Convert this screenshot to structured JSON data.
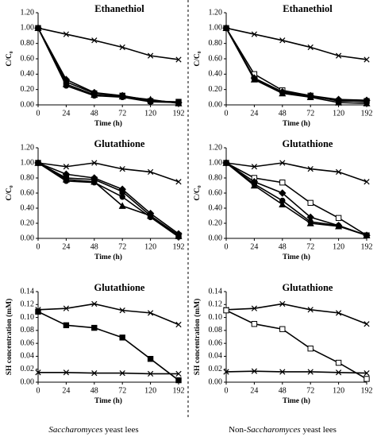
{
  "chart_data": [
    {
      "type": "line",
      "title": "Ethanethiol",
      "xlabel": "Time (h)",
      "ylabel": "C/C₀",
      "categories": [
        "0",
        "24",
        "48",
        "72",
        "120",
        "192"
      ],
      "ylim": [
        0,
        1.2
      ],
      "yticks": [
        {
          "value": 0,
          "label": "0.00"
        },
        {
          "value": 0.2,
          "label": "0.20"
        },
        {
          "value": 0.4,
          "label": "0.40"
        },
        {
          "value": 0.6,
          "label": "0.60"
        },
        {
          "value": 0.8,
          "label": "0.80"
        },
        {
          "value": 1,
          "label": "1.00"
        },
        {
          "value": 1.2,
          "label": "1.20"
        }
      ],
      "grid": false,
      "series": [
        {
          "color": "#000000",
          "marker": "x",
          "fill": "none",
          "values": [
            1.0,
            0.92,
            0.84,
            0.75,
            0.64,
            0.59
          ]
        },
        {
          "color": "#000000",
          "marker": "diamond",
          "fill": "#000000",
          "values": [
            1.0,
            0.33,
            0.16,
            0.12,
            0.06,
            0.03
          ]
        },
        {
          "color": "#000000",
          "marker": "square",
          "fill": "#000000",
          "values": [
            1.0,
            0.3,
            0.15,
            0.12,
            0.05,
            0.04
          ]
        },
        {
          "color": "#000000",
          "marker": "triangle",
          "fill": "#000000",
          "values": [
            1.0,
            0.27,
            0.13,
            0.11,
            0.07,
            0.02
          ]
        },
        {
          "color": "#000000",
          "marker": "circle",
          "fill": "#000000",
          "values": [
            1.0,
            0.25,
            0.12,
            0.1,
            0.04,
            0.03
          ]
        }
      ]
    },
    {
      "type": "line",
      "title": "Ethanethiol",
      "xlabel": "Time (h)",
      "ylabel": "C/C₀",
      "categories": [
        "0",
        "24",
        "48",
        "72",
        "120",
        "192"
      ],
      "ylim": [
        0,
        1.2
      ],
      "yticks": [
        {
          "value": 0,
          "label": "0.00"
        },
        {
          "value": 0.2,
          "label": "0.20"
        },
        {
          "value": 0.4,
          "label": "0.40"
        },
        {
          "value": 0.6,
          "label": "0.60"
        },
        {
          "value": 0.8,
          "label": "0.80"
        },
        {
          "value": 1,
          "label": "1.00"
        },
        {
          "value": 1.2,
          "label": "1.20"
        }
      ],
      "grid": false,
      "series": [
        {
          "color": "#000000",
          "marker": "x",
          "fill": "none",
          "values": [
            1.0,
            0.92,
            0.84,
            0.75,
            0.64,
            0.59
          ]
        },
        {
          "color": "#000000",
          "marker": "square",
          "fill": "#ffffff",
          "values": [
            1.0,
            0.4,
            0.19,
            0.12,
            0.05,
            0.05
          ]
        },
        {
          "color": "#000000",
          "marker": "diamond",
          "fill": "#000000",
          "values": [
            1.0,
            0.35,
            0.17,
            0.12,
            0.07,
            0.06
          ]
        },
        {
          "color": "#000000",
          "marker": "triangle",
          "fill": "#000000",
          "values": [
            1.0,
            0.33,
            0.15,
            0.1,
            0.03,
            0.02
          ]
        },
        {
          "color": "#000000",
          "marker": "circle",
          "fill": "#000000",
          "values": [
            1.0,
            0.34,
            0.16,
            0.11,
            0.06,
            0.04
          ]
        }
      ]
    },
    {
      "type": "line",
      "title": "Glutathione",
      "xlabel": "Time (h)",
      "ylabel": "C/C₀",
      "categories": [
        "0",
        "24",
        "48",
        "72",
        "120",
        "192"
      ],
      "ylim": [
        0,
        1.2
      ],
      "yticks": [
        {
          "value": 0,
          "label": "0.00"
        },
        {
          "value": 0.2,
          "label": "0.20"
        },
        {
          "value": 0.4,
          "label": "0.40"
        },
        {
          "value": 0.6,
          "label": "0.60"
        },
        {
          "value": 0.8,
          "label": "0.80"
        },
        {
          "value": 1,
          "label": "1.00"
        },
        {
          "value": 1.2,
          "label": "1.20"
        }
      ],
      "grid": false,
      "series": [
        {
          "color": "#000000",
          "marker": "x",
          "fill": "none",
          "values": [
            1.0,
            0.95,
            1.0,
            0.92,
            0.88,
            0.75
          ]
        },
        {
          "color": "#000000",
          "marker": "diamond",
          "fill": "#000000",
          "values": [
            1.0,
            0.85,
            0.8,
            0.65,
            0.33,
            0.06
          ]
        },
        {
          "color": "#000000",
          "marker": "square",
          "fill": "#000000",
          "values": [
            1.0,
            0.8,
            0.78,
            0.62,
            0.3,
            0.04
          ]
        },
        {
          "color": "#000000",
          "marker": "circle",
          "fill": "#000000",
          "values": [
            1.0,
            0.76,
            0.74,
            0.55,
            0.28,
            0.02
          ]
        },
        {
          "color": "#000000",
          "marker": "triangle",
          "fill": "#000000",
          "values": [
            1.0,
            0.78,
            0.75,
            0.43,
            0.3,
            0.03
          ]
        }
      ]
    },
    {
      "type": "line",
      "title": "Glutathione",
      "xlabel": "Time (h)",
      "ylabel": "C/C₀",
      "categories": [
        "0",
        "24",
        "48",
        "72",
        "120",
        "192"
      ],
      "ylim": [
        0,
        1.2
      ],
      "yticks": [
        {
          "value": 0,
          "label": "0.00"
        },
        {
          "value": 0.2,
          "label": "0.20"
        },
        {
          "value": 0.4,
          "label": "0.40"
        },
        {
          "value": 0.6,
          "label": "0.60"
        },
        {
          "value": 0.8,
          "label": "0.80"
        },
        {
          "value": 1,
          "label": "1.00"
        },
        {
          "value": 1.2,
          "label": "1.20"
        }
      ],
      "grid": false,
      "series": [
        {
          "color": "#000000",
          "marker": "x",
          "fill": "none",
          "values": [
            1.0,
            0.95,
            1.0,
            0.92,
            0.88,
            0.75
          ]
        },
        {
          "color": "#000000",
          "marker": "square",
          "fill": "#ffffff",
          "values": [
            1.0,
            0.8,
            0.74,
            0.47,
            0.27,
            0.04
          ]
        },
        {
          "color": "#000000",
          "marker": "diamond",
          "fill": "#000000",
          "values": [
            1.0,
            0.75,
            0.6,
            0.28,
            0.17,
            0.04
          ]
        },
        {
          "color": "#000000",
          "marker": "circle",
          "fill": "#000000",
          "values": [
            1.0,
            0.72,
            0.5,
            0.22,
            0.17,
            0.04
          ]
        },
        {
          "color": "#000000",
          "marker": "triangle",
          "fill": "#000000",
          "values": [
            1.0,
            0.7,
            0.45,
            0.2,
            0.16,
            0.04
          ]
        }
      ]
    },
    {
      "type": "line",
      "title": "Glutathione",
      "xlabel": "Time (h)",
      "ylabel": "SH concentration (mM)",
      "categories": [
        "0",
        "24",
        "48",
        "72",
        "120",
        "192"
      ],
      "ylim": [
        0,
        0.14
      ],
      "yticks": [
        {
          "value": 0,
          "label": "0.00"
        },
        {
          "value": 0.02,
          "label": "0.02"
        },
        {
          "value": 0.04,
          "label": "0.04"
        },
        {
          "value": 0.06,
          "label": "0.06"
        },
        {
          "value": 0.08,
          "label": "0.08"
        },
        {
          "value": 0.1,
          "label": "0.10"
        },
        {
          "value": 0.12,
          "label": "0.12"
        },
        {
          "value": 0.14,
          "label": "0.14"
        }
      ],
      "grid": false,
      "series": [
        {
          "color": "#000000",
          "marker": "x",
          "fill": "none",
          "values": [
            0.112,
            0.114,
            0.121,
            0.111,
            0.107,
            0.089
          ]
        },
        {
          "color": "#000000",
          "marker": "square",
          "fill": "#000000",
          "values": [
            0.109,
            0.088,
            0.084,
            0.069,
            0.036,
            0.003
          ]
        },
        {
          "color": "#000000",
          "marker": "x",
          "fill": "none",
          "values": [
            0.015,
            0.015,
            0.014,
            0.014,
            0.013,
            0.013
          ]
        }
      ]
    },
    {
      "type": "line",
      "title": "Glutathione",
      "xlabel": "Time (h)",
      "ylabel": "SH concentration (mM)",
      "categories": [
        "0",
        "24",
        "48",
        "72",
        "120",
        "192"
      ],
      "ylim": [
        0,
        0.14
      ],
      "yticks": [
        {
          "value": 0,
          "label": "0.00"
        },
        {
          "value": 0.02,
          "label": "0.02"
        },
        {
          "value": 0.04,
          "label": "0.04"
        },
        {
          "value": 0.06,
          "label": "0.06"
        },
        {
          "value": 0.08,
          "label": "0.08"
        },
        {
          "value": 0.1,
          "label": "0.10"
        },
        {
          "value": 0.12,
          "label": "0.12"
        },
        {
          "value": 0.14,
          "label": "0.14"
        }
      ],
      "grid": false,
      "series": [
        {
          "color": "#000000",
          "marker": "x",
          "fill": "none",
          "values": [
            0.112,
            0.114,
            0.121,
            0.112,
            0.107,
            0.09
          ]
        },
        {
          "color": "#000000",
          "marker": "square",
          "fill": "#ffffff",
          "values": [
            0.111,
            0.09,
            0.082,
            0.052,
            0.03,
            0.005
          ]
        },
        {
          "color": "#000000",
          "marker": "x",
          "fill": "none",
          "values": [
            0.016,
            0.017,
            0.016,
            0.016,
            0.015,
            0.014
          ]
        }
      ]
    }
  ],
  "captions": [
    {
      "italic": "Saccharomyces",
      "rest": " yeast lees"
    },
    {
      "prefix": "Non-",
      "italic": "Saccharomyces",
      "rest": " yeast lees"
    }
  ]
}
